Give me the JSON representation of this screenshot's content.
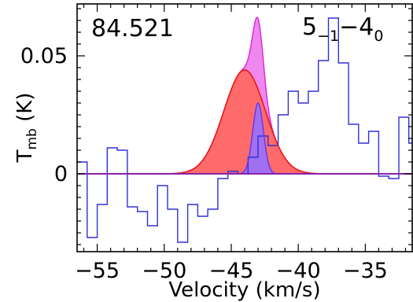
{
  "chart_data": {
    "type": "line",
    "title": "",
    "frequency_label": "84.521",
    "transition_label": {
      "base1": "5",
      "sub1": "−1",
      "dash": "−",
      "base2": "4",
      "sub2": "0"
    },
    "xlabel": "Velocity (km/s)",
    "ylabel": {
      "base": "T",
      "sub": "mb",
      "rest": " (K)"
    },
    "xlim": [
      -56.5,
      -31.5
    ],
    "ylim": [
      -0.033,
      0.072
    ],
    "x_ticks": [
      -55,
      -50,
      -45,
      -40,
      -35
    ],
    "x_tick_labels": [
      "−55",
      "−50",
      "−45",
      "−40",
      "−35"
    ],
    "y_ticks": [
      0,
      0.05
    ],
    "y_tick_labels": [
      "0",
      "0.05"
    ],
    "grid": false,
    "colors": {
      "spectrum": "#3030d8",
      "total_fill": "#ee88ee",
      "total_line": "#dd22dd",
      "broad_fill": "#ff6b6b",
      "broad_line": "#e81818",
      "narrow_fill": "#a070f0",
      "narrow_line": "#6633ee",
      "baseline": "#8822aa"
    },
    "spectrum": {
      "bin_edges_start": -56.5,
      "bin_width": 0.75,
      "values": [
        0.005,
        -0.027,
        -0.013,
        0.011,
        0.01,
        -0.014,
        -0.016,
        -0.022,
        -0.005,
        -0.015,
        -0.029,
        -0.013,
        -0.018,
        -0.015,
        -0.002,
        0.001,
        0.0,
        0.007,
        0.016,
        0.012,
        0.025,
        0.035,
        0.03,
        0.035,
        0.048,
        0.066,
        0.047,
        0.021,
        0.013,
        0.018,
        -0.001,
        -0.002,
        0.024,
        0.013,
        -0.005,
        0.01,
        -0.004,
        -0.004,
        -0.002,
        0.011,
        -0.009,
        0.011,
        -0.016,
        -0.015,
        0.003
      ]
    },
    "series": [
      {
        "amp": 0.044,
        "center": -44.0,
        "sigma": 1.55
      },
      {
        "amp": 0.03,
        "center": -43.0,
        "sigma": 0.4
      }
    ]
  }
}
